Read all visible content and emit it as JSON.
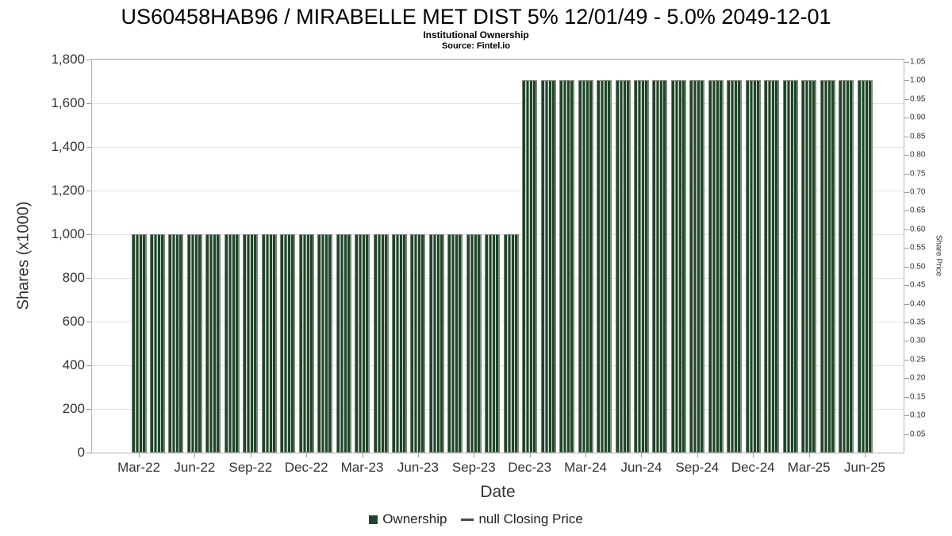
{
  "chart_data": {
    "type": "bar",
    "title": "US60458HAB96 / MIRABELLE MET DIST 5% 12/01/49 - 5.0% 2049-12-01",
    "subtitle": "Institutional Ownership",
    "source": "Source: Fintel.io",
    "xlabel": "Date",
    "ylabel_left": "Shares (x1000)",
    "ylabel_right": "Share Price",
    "grid": "horizontal",
    "legend_position": "bottom",
    "legend": [
      {
        "label": "Ownership",
        "marker": "square",
        "color": "#1e4527"
      },
      {
        "label": "null Closing Price",
        "marker": "dash",
        "color": "#4a4a4a"
      }
    ],
    "x_tick_labels": [
      "Mar-22",
      "Jun-22",
      "Sep-22",
      "Dec-22",
      "Mar-23",
      "Jun-23",
      "Sep-23",
      "Dec-23",
      "Mar-24",
      "Jun-24",
      "Sep-24",
      "Dec-24",
      "Mar-25",
      "Jun-25"
    ],
    "left_axis": {
      "min": 0,
      "max": 1800,
      "tick_values": [
        0,
        200,
        400,
        600,
        800,
        1000,
        1200,
        1400,
        1600,
        1800
      ],
      "tick_labels": [
        "0",
        "200",
        "400",
        "600",
        "800",
        "1,000",
        "1,200",
        "1,400",
        "1,600",
        "1,800"
      ]
    },
    "right_axis": {
      "min": 0,
      "max": 1.0564,
      "tick_values": [
        0.05,
        0.1,
        0.15,
        0.2,
        0.25,
        0.3,
        0.35,
        0.4,
        0.45,
        0.5,
        0.55,
        0.6,
        0.65,
        0.7,
        0.75,
        0.8,
        0.85,
        0.9,
        0.95,
        1.0,
        1.05
      ],
      "tick_labels": [
        "0.05",
        "0.10",
        "0.15",
        "0.20",
        "0.25",
        "0.30",
        "0.35",
        "0.40",
        "0.45",
        "0.50",
        "0.55",
        "0.60",
        "0.65",
        "0.70",
        "0.75",
        "0.80",
        "0.85",
        "0.90",
        "0.95",
        "1.00",
        "1.05"
      ]
    },
    "series": [
      {
        "name": "Ownership",
        "color": "#1e4527",
        "x": [
          "Mar-22",
          "Apr-22",
          "May-22",
          "Jun-22",
          "Jul-22",
          "Aug-22",
          "Sep-22",
          "Oct-22",
          "Nov-22",
          "Dec-22",
          "Jan-23",
          "Feb-23",
          "Mar-23",
          "Apr-23",
          "May-23",
          "Jun-23",
          "Jul-23",
          "Aug-23",
          "Sep-23",
          "Oct-23",
          "Nov-23",
          "Dec-23",
          "Jan-24",
          "Feb-24",
          "Mar-24",
          "Apr-24",
          "May-24",
          "Jun-24",
          "Jul-24",
          "Aug-24",
          "Sep-24",
          "Oct-24",
          "Nov-24",
          "Dec-24",
          "Jan-25",
          "Feb-25",
          "Mar-25",
          "Apr-25",
          "May-25",
          "Jun-25"
        ],
        "values": [
          1000,
          1000,
          1000,
          1000,
          1000,
          1000,
          1000,
          1000,
          1000,
          1000,
          1000,
          1000,
          1000,
          1000,
          1000,
          1000,
          1000,
          1000,
          1000,
          1000,
          1000,
          1705,
          1705,
          1705,
          1705,
          1705,
          1705,
          1705,
          1705,
          1705,
          1705,
          1705,
          1705,
          1705,
          1705,
          1705,
          1705,
          1705,
          1705,
          1705
        ]
      },
      {
        "name": "null Closing Price",
        "values": []
      }
    ]
  }
}
